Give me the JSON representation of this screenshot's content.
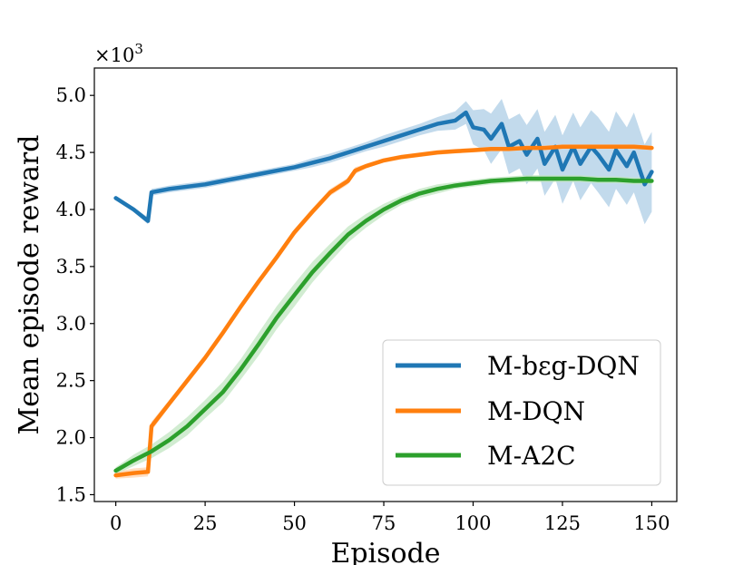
{
  "chart_data": {
    "type": "line",
    "title": "",
    "xlabel": "Episode",
    "ylabel": "Mean episode reward",
    "y_multiplier_label_prefix": "×10",
    "y_multiplier_label_exponent": "3",
    "xlim": [
      -6,
      157
    ],
    "ylim": [
      1.44,
      5.24
    ],
    "xticks": [
      0,
      25,
      50,
      75,
      100,
      125,
      150
    ],
    "xtick_labels": [
      "0",
      "25",
      "50",
      "75",
      "100",
      "125",
      "150"
    ],
    "yticks": [
      1.5,
      2.0,
      2.5,
      3.0,
      3.5,
      4.0,
      4.5,
      5.0
    ],
    "ytick_labels": [
      "1.5",
      "2.0",
      "2.5",
      "3.0",
      "3.5",
      "4.0",
      "4.5",
      "5.0"
    ],
    "grid": false,
    "legend_position": "bottom-right",
    "series": [
      {
        "name": "M-bεg-DQN",
        "color": "#1f77b4",
        "band_color": "#aecde6",
        "x": [
          0,
          5,
          9,
          10,
          15,
          20,
          25,
          30,
          35,
          40,
          45,
          50,
          55,
          60,
          65,
          70,
          75,
          80,
          85,
          90,
          95,
          98,
          100,
          103,
          105,
          108,
          110,
          113,
          115,
          118,
          120,
          123,
          125,
          128,
          130,
          133,
          135,
          138,
          140,
          143,
          145,
          148,
          150
        ],
        "values": [
          4.1,
          4.0,
          3.9,
          4.15,
          4.18,
          4.2,
          4.22,
          4.25,
          4.28,
          4.31,
          4.34,
          4.37,
          4.41,
          4.45,
          4.5,
          4.55,
          4.6,
          4.65,
          4.7,
          4.75,
          4.78,
          4.85,
          4.72,
          4.7,
          4.62,
          4.75,
          4.55,
          4.6,
          4.48,
          4.62,
          4.4,
          4.55,
          4.35,
          4.55,
          4.4,
          4.55,
          4.48,
          4.35,
          4.52,
          4.38,
          4.5,
          4.22,
          4.33
        ],
        "band": [
          0.02,
          0.02,
          0.03,
          0.03,
          0.03,
          0.03,
          0.03,
          0.03,
          0.03,
          0.03,
          0.03,
          0.03,
          0.04,
          0.04,
          0.04,
          0.04,
          0.05,
          0.05,
          0.05,
          0.06,
          0.08,
          0.1,
          0.15,
          0.18,
          0.22,
          0.22,
          0.24,
          0.24,
          0.26,
          0.26,
          0.28,
          0.28,
          0.3,
          0.3,
          0.32,
          0.32,
          0.33,
          0.33,
          0.34,
          0.34,
          0.35,
          0.35,
          0.35
        ]
      },
      {
        "name": "M-DQN",
        "color": "#ff7f0e",
        "band_color": "#ffd3ac",
        "x": [
          0,
          5,
          9,
          10,
          15,
          20,
          25,
          30,
          35,
          40,
          45,
          50,
          55,
          60,
          65,
          67,
          70,
          75,
          80,
          85,
          90,
          95,
          100,
          105,
          110,
          115,
          120,
          125,
          130,
          135,
          140,
          145,
          150
        ],
        "values": [
          1.67,
          1.69,
          1.7,
          2.1,
          2.3,
          2.5,
          2.7,
          2.92,
          3.15,
          3.37,
          3.58,
          3.8,
          3.98,
          4.15,
          4.25,
          4.34,
          4.38,
          4.43,
          4.46,
          4.48,
          4.5,
          4.51,
          4.52,
          4.53,
          4.53,
          4.54,
          4.54,
          4.55,
          4.55,
          4.55,
          4.55,
          4.55,
          4.54
        ],
        "band": [
          0.03,
          0.04,
          0.04,
          0.04,
          0.03,
          0.03,
          0.03,
          0.03,
          0.03,
          0.03,
          0.03,
          0.03,
          0.03,
          0.03,
          0.03,
          0.03,
          0.02,
          0.02,
          0.02,
          0.02,
          0.02,
          0.02,
          0.02,
          0.02,
          0.02,
          0.02,
          0.02,
          0.02,
          0.02,
          0.02,
          0.02,
          0.02,
          0.02
        ]
      },
      {
        "name": "M-A2C",
        "color": "#2ca02c",
        "band_color": "#c2e6c2",
        "x": [
          0,
          5,
          10,
          15,
          20,
          25,
          30,
          35,
          40,
          45,
          50,
          55,
          60,
          65,
          70,
          75,
          80,
          85,
          90,
          95,
          100,
          105,
          110,
          115,
          120,
          125,
          130,
          135,
          140,
          145,
          150
        ],
        "values": [
          1.71,
          1.8,
          1.88,
          1.98,
          2.1,
          2.25,
          2.4,
          2.6,
          2.82,
          3.05,
          3.25,
          3.45,
          3.62,
          3.78,
          3.9,
          4.0,
          4.08,
          4.14,
          4.18,
          4.21,
          4.23,
          4.25,
          4.26,
          4.27,
          4.27,
          4.27,
          4.27,
          4.26,
          4.26,
          4.25,
          4.25
        ],
        "band": [
          0.03,
          0.05,
          0.06,
          0.07,
          0.08,
          0.08,
          0.09,
          0.09,
          0.1,
          0.1,
          0.1,
          0.09,
          0.08,
          0.07,
          0.06,
          0.05,
          0.04,
          0.04,
          0.04,
          0.03,
          0.03,
          0.03,
          0.03,
          0.03,
          0.03,
          0.03,
          0.03,
          0.03,
          0.03,
          0.03,
          0.03
        ]
      }
    ]
  }
}
